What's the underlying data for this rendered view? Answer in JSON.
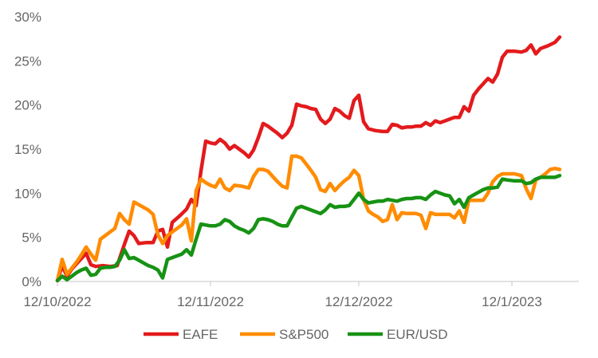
{
  "chart_data": {
    "type": "line",
    "title": "",
    "xlabel": "",
    "ylabel": "",
    "x_ticks": [
      "12/10/2022",
      "12/11/2022",
      "12/12/2022",
      "12/1/2023"
    ],
    "x_tick_days": [
      0,
      32,
      63,
      95
    ],
    "x_range_days": [
      0,
      109
    ],
    "y_ticks": [
      0,
      5,
      10,
      15,
      20,
      25,
      30
    ],
    "y_tick_labels": [
      "0%",
      "5%",
      "10%",
      "15%",
      "20%",
      "25%",
      "30%"
    ],
    "ylim": [
      0,
      30
    ],
    "grid": false,
    "legend_position": "bottom",
    "series": [
      {
        "name": "EAFE",
        "color": "#e31a1c",
        "points": [
          [
            0.0,
            0.1
          ],
          [
            1.0,
            1.8
          ],
          [
            2.0,
            0.6
          ],
          [
            3.0,
            1.4
          ],
          [
            4.0,
            2.0
          ],
          [
            5.0,
            2.6
          ],
          [
            6.0,
            3.2
          ],
          [
            7.0,
            1.9
          ],
          [
            8.0,
            1.7
          ],
          [
            9.5,
            1.8
          ],
          [
            11.0,
            1.7
          ],
          [
            12.5,
            1.8
          ],
          [
            14.0,
            4.2
          ],
          [
            15.0,
            5.7
          ],
          [
            16.0,
            5.2
          ],
          [
            17.0,
            4.3
          ],
          [
            18.5,
            4.4
          ],
          [
            20.0,
            4.4
          ],
          [
            21.0,
            5.7
          ],
          [
            22.0,
            5.9
          ],
          [
            23.0,
            3.9
          ],
          [
            24.0,
            6.7
          ],
          [
            25.5,
            7.4
          ],
          [
            27.0,
            8.2
          ],
          [
            28.0,
            9.3
          ],
          [
            29.0,
            8.6
          ],
          [
            30.0,
            12.5
          ],
          [
            31.0,
            15.9
          ],
          [
            32.0,
            15.7
          ],
          [
            33.0,
            15.6
          ],
          [
            34.0,
            16.1
          ],
          [
            35.0,
            15.7
          ],
          [
            36.0,
            15.0
          ],
          [
            37.0,
            15.4
          ],
          [
            38.0,
            15.0
          ],
          [
            39.0,
            14.6
          ],
          [
            40.0,
            14.1
          ],
          [
            41.0,
            14.9
          ],
          [
            42.0,
            16.3
          ],
          [
            43.0,
            17.9
          ],
          [
            44.0,
            17.6
          ],
          [
            45.0,
            17.2
          ],
          [
            46.0,
            16.8
          ],
          [
            47.0,
            16.3
          ],
          [
            48.0,
            16.8
          ],
          [
            49.0,
            17.7
          ],
          [
            50.0,
            20.1
          ],
          [
            51.0,
            19.9
          ],
          [
            52.0,
            19.8
          ],
          [
            53.0,
            19.6
          ],
          [
            54.0,
            19.5
          ],
          [
            55.0,
            18.4
          ],
          [
            56.0,
            17.9
          ],
          [
            57.0,
            18.4
          ],
          [
            58.0,
            19.6
          ],
          [
            59.0,
            19.3
          ],
          [
            60.0,
            18.8
          ],
          [
            61.0,
            18.5
          ],
          [
            62.0,
            20.5
          ],
          [
            63.0,
            21.1
          ],
          [
            64.0,
            18.1
          ],
          [
            65.0,
            17.3
          ],
          [
            66.5,
            17.1
          ],
          [
            68.0,
            17.0
          ],
          [
            69.0,
            17.0
          ],
          [
            70.0,
            17.8
          ],
          [
            71.0,
            17.7
          ],
          [
            72.0,
            17.4
          ],
          [
            73.0,
            17.5
          ],
          [
            74.0,
            17.5
          ],
          [
            75.0,
            17.6
          ],
          [
            76.0,
            17.6
          ],
          [
            77.0,
            18.0
          ],
          [
            78.0,
            17.7
          ],
          [
            79.0,
            18.2
          ],
          [
            80.0,
            18.0
          ],
          [
            81.0,
            18.2
          ],
          [
            82.0,
            18.4
          ],
          [
            83.0,
            18.6
          ],
          [
            84.0,
            18.6
          ],
          [
            85.0,
            19.8
          ],
          [
            86.0,
            19.3
          ],
          [
            87.0,
            21.1
          ],
          [
            88.0,
            21.8
          ],
          [
            89.0,
            22.4
          ],
          [
            90.0,
            23.0
          ],
          [
            91.0,
            22.6
          ],
          [
            92.0,
            23.5
          ],
          [
            93.0,
            25.4
          ],
          [
            94.0,
            26.1
          ],
          [
            95.5,
            26.1
          ],
          [
            97.0,
            26.0
          ],
          [
            98.0,
            26.2
          ],
          [
            99.0,
            26.8
          ],
          [
            100.0,
            25.8
          ],
          [
            101.0,
            26.4
          ],
          [
            102.5,
            26.7
          ],
          [
            104.0,
            27.1
          ],
          [
            105.0,
            27.7
          ]
        ]
      },
      {
        "name": "S&P500",
        "color": "#ff8c00",
        "points": [
          [
            0.0,
            0.1
          ],
          [
            1.0,
            2.5
          ],
          [
            2.0,
            0.8
          ],
          [
            3.0,
            1.5
          ],
          [
            4.0,
            2.2
          ],
          [
            5.0,
            3.0
          ],
          [
            6.0,
            3.9
          ],
          [
            7.0,
            3.1
          ],
          [
            8.0,
            2.4
          ],
          [
            9.0,
            4.8
          ],
          [
            10.0,
            5.2
          ],
          [
            11.0,
            5.6
          ],
          [
            12.0,
            6.0
          ],
          [
            13.0,
            7.7
          ],
          [
            14.0,
            7.0
          ],
          [
            15.0,
            6.5
          ],
          [
            16.0,
            9.0
          ],
          [
            17.0,
            8.7
          ],
          [
            18.0,
            8.4
          ],
          [
            19.0,
            8.1
          ],
          [
            20.0,
            7.6
          ],
          [
            21.0,
            5.3
          ],
          [
            22.0,
            4.3
          ],
          [
            23.0,
            5.2
          ],
          [
            24.0,
            5.6
          ],
          [
            25.0,
            6.0
          ],
          [
            26.0,
            6.4
          ],
          [
            27.0,
            7.1
          ],
          [
            28.0,
            4.6
          ],
          [
            29.0,
            10.3
          ],
          [
            30.0,
            11.6
          ],
          [
            31.0,
            11.2
          ],
          [
            32.0,
            10.9
          ],
          [
            33.0,
            10.7
          ],
          [
            34.0,
            11.6
          ],
          [
            35.0,
            10.6
          ],
          [
            36.0,
            10.3
          ],
          [
            37.0,
            10.9
          ],
          [
            38.5,
            10.8
          ],
          [
            40.0,
            10.6
          ],
          [
            41.0,
            11.9
          ],
          [
            42.0,
            12.7
          ],
          [
            43.0,
            12.7
          ],
          [
            44.0,
            12.5
          ],
          [
            45.0,
            11.9
          ],
          [
            46.0,
            11.3
          ],
          [
            47.0,
            10.8
          ],
          [
            48.0,
            10.6
          ],
          [
            49.0,
            14.2
          ],
          [
            50.0,
            14.2
          ],
          [
            51.0,
            14.0
          ],
          [
            52.0,
            13.3
          ],
          [
            53.0,
            12.6
          ],
          [
            54.0,
            11.8
          ],
          [
            55.0,
            10.4
          ],
          [
            56.0,
            10.2
          ],
          [
            57.0,
            11.1
          ],
          [
            58.0,
            10.3
          ],
          [
            59.0,
            10.9
          ],
          [
            60.0,
            11.4
          ],
          [
            61.0,
            11.8
          ],
          [
            62.0,
            12.6
          ],
          [
            63.0,
            12.0
          ],
          [
            64.0,
            9.3
          ],
          [
            65.0,
            8.0
          ],
          [
            66.0,
            7.6
          ],
          [
            67.0,
            7.3
          ],
          [
            68.0,
            6.8
          ],
          [
            69.0,
            7.0
          ],
          [
            70.0,
            8.7
          ],
          [
            71.0,
            7.0
          ],
          [
            72.0,
            7.8
          ],
          [
            73.0,
            7.7
          ],
          [
            74.0,
            7.7
          ],
          [
            75.0,
            7.7
          ],
          [
            76.0,
            7.5
          ],
          [
            77.0,
            6.0
          ],
          [
            78.0,
            7.8
          ],
          [
            79.0,
            7.6
          ],
          [
            80.0,
            7.6
          ],
          [
            81.0,
            7.6
          ],
          [
            82.0,
            7.6
          ],
          [
            83.0,
            7.2
          ],
          [
            84.0,
            8.0
          ],
          [
            85.0,
            6.7
          ],
          [
            86.0,
            9.2
          ],
          [
            87.0,
            9.2
          ],
          [
            88.0,
            9.2
          ],
          [
            89.0,
            9.2
          ],
          [
            90.0,
            10.0
          ],
          [
            91.0,
            11.3
          ],
          [
            92.0,
            11.9
          ],
          [
            93.0,
            12.2
          ],
          [
            94.0,
            12.2
          ],
          [
            95.5,
            12.2
          ],
          [
            97.0,
            12.0
          ],
          [
            98.0,
            10.5
          ],
          [
            99.0,
            9.4
          ],
          [
            100.0,
            11.5
          ],
          [
            101.0,
            11.8
          ],
          [
            102.0,
            12.2
          ],
          [
            103.0,
            12.7
          ],
          [
            104.0,
            12.8
          ],
          [
            105.0,
            12.7
          ]
        ]
      },
      {
        "name": "EUR/USD",
        "color": "#179214",
        "points": [
          [
            0.0,
            0.1
          ],
          [
            1.0,
            0.6
          ],
          [
            2.0,
            0.2
          ],
          [
            3.0,
            0.6
          ],
          [
            4.0,
            1.0
          ],
          [
            5.0,
            1.3
          ],
          [
            6.0,
            1.5
          ],
          [
            7.0,
            0.7
          ],
          [
            8.0,
            0.8
          ],
          [
            9.0,
            1.5
          ],
          [
            10.0,
            1.6
          ],
          [
            11.0,
            1.6
          ],
          [
            12.0,
            1.7
          ],
          [
            13.0,
            2.4
          ],
          [
            14.0,
            3.6
          ],
          [
            15.0,
            2.6
          ],
          [
            16.0,
            2.7
          ],
          [
            17.0,
            2.4
          ],
          [
            18.0,
            2.1
          ],
          [
            19.0,
            1.8
          ],
          [
            20.0,
            1.6
          ],
          [
            21.0,
            1.3
          ],
          [
            22.0,
            0.4
          ],
          [
            23.0,
            2.5
          ],
          [
            24.0,
            2.7
          ],
          [
            25.0,
            2.9
          ],
          [
            26.0,
            3.1
          ],
          [
            27.0,
            3.6
          ],
          [
            28.0,
            3.0
          ],
          [
            29.0,
            4.8
          ],
          [
            30.0,
            6.5
          ],
          [
            31.0,
            6.4
          ],
          [
            32.0,
            6.3
          ],
          [
            33.0,
            6.3
          ],
          [
            34.0,
            6.5
          ],
          [
            35.0,
            7.0
          ],
          [
            36.0,
            6.8
          ],
          [
            37.0,
            6.3
          ],
          [
            38.0,
            6.0
          ],
          [
            39.0,
            5.8
          ],
          [
            40.0,
            5.5
          ],
          [
            41.0,
            6.0
          ],
          [
            42.0,
            7.0
          ],
          [
            43.0,
            7.1
          ],
          [
            44.0,
            7.0
          ],
          [
            45.0,
            6.8
          ],
          [
            46.0,
            6.5
          ],
          [
            47.0,
            6.3
          ],
          [
            48.0,
            6.3
          ],
          [
            49.0,
            7.3
          ],
          [
            50.0,
            8.3
          ],
          [
            51.0,
            8.5
          ],
          [
            52.0,
            8.3
          ],
          [
            53.0,
            8.1
          ],
          [
            54.0,
            7.9
          ],
          [
            55.0,
            7.7
          ],
          [
            56.0,
            8.1
          ],
          [
            57.0,
            8.7
          ],
          [
            58.0,
            8.4
          ],
          [
            59.0,
            8.5
          ],
          [
            60.0,
            8.5
          ],
          [
            61.0,
            8.6
          ],
          [
            62.0,
            9.3
          ],
          [
            63.0,
            10.0
          ],
          [
            64.0,
            9.3
          ],
          [
            65.0,
            8.9
          ],
          [
            66.0,
            9.0
          ],
          [
            67.0,
            9.1
          ],
          [
            68.0,
            9.1
          ],
          [
            69.0,
            9.3
          ],
          [
            70.0,
            9.2
          ],
          [
            71.0,
            9.1
          ],
          [
            72.0,
            9.3
          ],
          [
            73.0,
            9.4
          ],
          [
            74.0,
            9.4
          ],
          [
            75.0,
            9.5
          ],
          [
            76.0,
            9.5
          ],
          [
            77.0,
            9.3
          ],
          [
            78.0,
            9.8
          ],
          [
            79.0,
            10.2
          ],
          [
            80.0,
            10.0
          ],
          [
            81.0,
            9.8
          ],
          [
            82.0,
            9.7
          ],
          [
            83.0,
            8.8
          ],
          [
            84.0,
            9.3
          ],
          [
            85.0,
            8.4
          ],
          [
            86.0,
            9.5
          ],
          [
            87.0,
            9.8
          ],
          [
            88.0,
            10.1
          ],
          [
            89.0,
            10.4
          ],
          [
            90.0,
            10.6
          ],
          [
            91.0,
            10.6
          ],
          [
            92.0,
            10.7
          ],
          [
            93.0,
            11.6
          ],
          [
            94.0,
            11.5
          ],
          [
            95.5,
            11.4
          ],
          [
            97.0,
            11.4
          ],
          [
            98.0,
            11.1
          ],
          [
            99.0,
            11.2
          ],
          [
            100.0,
            11.6
          ],
          [
            101.0,
            11.8
          ],
          [
            102.0,
            11.8
          ],
          [
            103.0,
            11.8
          ],
          [
            104.0,
            11.8
          ],
          [
            105.0,
            12.0
          ]
        ]
      }
    ]
  }
}
